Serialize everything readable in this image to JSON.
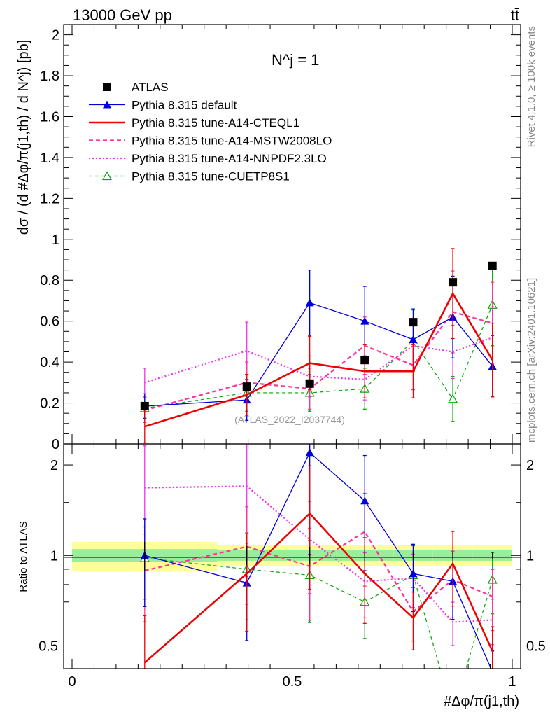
{
  "header": {
    "beam_label": "13000 GeV pp",
    "process_label": "tt̄",
    "rivet_label": "Rivet 4.1.0, ≥ 100k events",
    "mcplots_label": "mcplots.cern.ch [arXiv:2401.10621]",
    "analysis_label": "(ATLAS_2022_I2037744)",
    "panel_title": "N^j = 1"
  },
  "axes": {
    "ylabel_main": "dσ / (d #Δφ/π(j1,th) / d N^j) [pb]",
    "ylabel_ratio": "Ratio to ATLAS",
    "xlabel": "#Δφ/π(j1,th)",
    "x_ticks": [
      "0",
      "0.5",
      "1"
    ],
    "y_ticks_main": [
      "0",
      "0.2",
      "0.4",
      "0.6",
      "0.8",
      "1",
      "1.2",
      "1.4",
      "1.6",
      "1.8",
      "2"
    ],
    "y_ticks_ratio": [
      "0.5",
      "1",
      "2"
    ]
  },
  "chart_data": {
    "type": "line",
    "title": "N^j = 1",
    "xlabel": "#Δφ/π(j1,th)",
    "ylabel": "dσ / (d #Δφ/π(j1,th) / d N^j) [pb]",
    "xlim": [
      0,
      1
    ],
    "ylim": [
      0,
      2.05
    ],
    "ratio_ylim": [
      0.42,
      2.35
    ],
    "bin_edges": [
      0,
      0.33,
      0.48,
      0.6,
      0.73,
      0.82,
      0.91,
      1.0
    ],
    "x": [
      0.165,
      0.397,
      0.54,
      0.665,
      0.775,
      0.865,
      0.955
    ],
    "band_rel_inner": [
      0.05,
      0.04,
      0.04,
      0.04,
      0.04,
      0.04,
      0.04
    ],
    "band_rel_outer": [
      0.11,
      0.08,
      0.08,
      0.08,
      0.08,
      0.08,
      0.08
    ],
    "series": [
      {
        "name": "ATLAS",
        "color": "#000000",
        "values": [
          0.185,
          0.28,
          0.295,
          0.41,
          0.595,
          0.79,
          0.87
        ],
        "errors": [
          0.02,
          0.02,
          0.02,
          0.02,
          0.02,
          0.02,
          0.02
        ],
        "ratio": [
          1.0,
          1.0,
          1.0,
          1.0,
          1.0,
          1.0,
          1.0
        ]
      },
      {
        "name": "Pythia 8.315 default",
        "color": "#0000dd",
        "values": [
          0.185,
          0.215,
          0.69,
          0.6,
          0.51,
          0.62,
          0.38
        ],
        "errors": [
          0.06,
          0.1,
          0.16,
          0.17,
          0.15,
          0.2,
          0.15
        ],
        "ratio": [
          1.0,
          0.81,
          2.2,
          1.52,
          0.87,
          0.82,
          0.41
        ]
      },
      {
        "name": "Pythia 8.315 tune-A14-CTEQL1",
        "color": "#ee0000",
        "values": [
          0.085,
          0.24,
          0.395,
          0.355,
          0.355,
          0.735,
          0.41
        ],
        "errors": [
          0.08,
          0.1,
          0.13,
          0.13,
          0.13,
          0.22,
          0.18
        ],
        "ratio": [
          0.44,
          0.87,
          1.38,
          0.87,
          0.62,
          0.94,
          0.48
        ]
      },
      {
        "name": "Pythia 8.315 tune-A14-MSTW2008LO",
        "color": "#ff3399",
        "values": [
          0.165,
          0.3,
          0.27,
          0.48,
          0.385,
          0.645,
          0.59
        ],
        "errors": [
          0.06,
          0.1,
          0.1,
          0.14,
          0.12,
          0.2,
          0.2
        ],
        "ratio": [
          0.89,
          1.07,
          0.92,
          1.2,
          0.65,
          0.83,
          0.73
        ]
      },
      {
        "name": "Pythia 8.315 tune-A14-NNPDF2.3LO",
        "color": "#ee33ee",
        "values": [
          0.3,
          0.455,
          0.33,
          0.315,
          0.48,
          0.45,
          0.52
        ],
        "errors": [
          0.07,
          0.14,
          0.1,
          0.1,
          0.12,
          0.13,
          0.15
        ],
        "ratio": [
          1.68,
          1.7,
          1.13,
          0.82,
          0.84,
          0.6,
          0.61
        ]
      },
      {
        "name": "Pythia 8.315 tune-CUETP8S1",
        "color": "#00aa00",
        "values": [
          0.175,
          0.25,
          0.25,
          0.27,
          0.505,
          0.22,
          0.68
        ],
        "errors": [
          0.05,
          0.09,
          0.09,
          0.1,
          0.15,
          0.11,
          0.2
        ],
        "ratio": [
          0.98,
          0.9,
          0.86,
          0.7,
          0.86,
          0.3,
          0.83
        ]
      }
    ]
  }
}
